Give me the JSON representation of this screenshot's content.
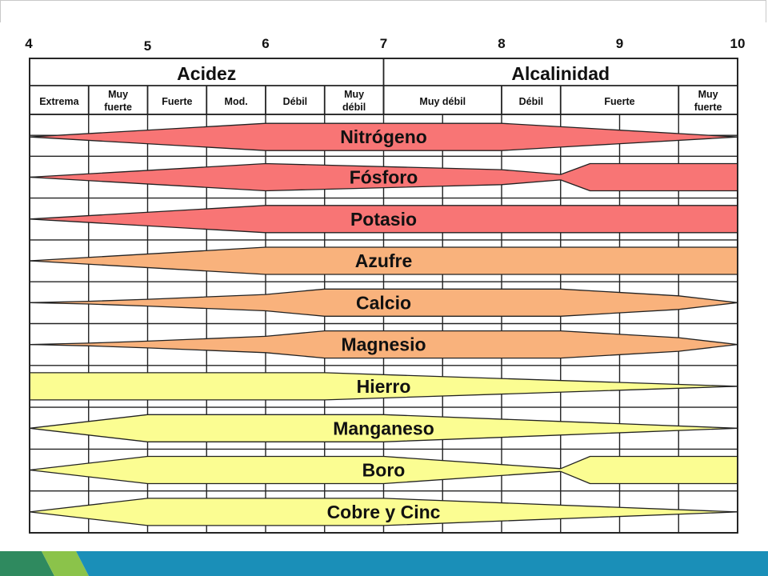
{
  "slide": {
    "footer": {
      "colors": [
        "#2f8a5f",
        "#8bc34a",
        "#1a8fb8"
      ]
    }
  },
  "chart_data": {
    "type": "band",
    "x_axis": {
      "ticks": [
        4,
        5,
        6,
        7,
        8,
        9,
        10
      ],
      "tick_labels": [
        "4",
        "5",
        "6",
        "7",
        "8",
        "9",
        "10"
      ],
      "range": [
        4,
        10
      ]
    },
    "groups": [
      {
        "label": "Acidez",
        "from": 4,
        "to": 7
      },
      {
        "label": "Alcalinidad",
        "from": 7,
        "to": 10
      }
    ],
    "subgroups": [
      {
        "label": "Extrema",
        "from": 4.0,
        "to": 4.5
      },
      {
        "label": "Muy\nfuerte",
        "from": 4.5,
        "to": 5.0
      },
      {
        "label": "Fuerte",
        "from": 5.0,
        "to": 5.5
      },
      {
        "label": "Mod.",
        "from": 5.5,
        "to": 6.0
      },
      {
        "label": "Débil",
        "from": 6.0,
        "to": 6.5
      },
      {
        "label": "Muy\ndébil",
        "from": 6.5,
        "to": 7.0
      },
      {
        "label": "Muy débil",
        "from": 7.0,
        "to": 8.0
      },
      {
        "label": "Débil",
        "from": 8.0,
        "to": 8.5
      },
      {
        "label": "Fuerte",
        "from": 8.5,
        "to": 9.5
      },
      {
        "label": "Muy\nfuerte",
        "from": 9.5,
        "to": 10.0
      }
    ],
    "series": [
      {
        "name": "Nitrógeno",
        "color": "#f87575",
        "profile": [
          [
            4,
            0
          ],
          [
            6,
            1
          ],
          [
            8,
            1
          ],
          [
            8.5,
            0.75
          ],
          [
            10,
            0
          ]
        ]
      },
      {
        "name": "Fósforo",
        "color": "#f87575",
        "profile": [
          [
            4,
            0
          ],
          [
            6,
            1
          ],
          [
            8,
            0.55
          ],
          [
            8.5,
            0.2
          ],
          [
            8.75,
            1
          ],
          [
            10,
            1
          ]
        ]
      },
      {
        "name": "Potasio",
        "color": "#f87575",
        "profile": [
          [
            4,
            0
          ],
          [
            6,
            1
          ],
          [
            10,
            1
          ]
        ]
      },
      {
        "name": "Azufre",
        "color": "#f9b27c",
        "profile": [
          [
            4,
            0
          ],
          [
            6,
            1
          ],
          [
            10,
            1
          ]
        ]
      },
      {
        "name": "Calcio",
        "color": "#f9b27c",
        "profile": [
          [
            4,
            0
          ],
          [
            4.5,
            0.1
          ],
          [
            5,
            0.25
          ],
          [
            6,
            0.6
          ],
          [
            6.5,
            1
          ],
          [
            8.5,
            1
          ],
          [
            9.5,
            0.5
          ],
          [
            10,
            0
          ]
        ]
      },
      {
        "name": "Magnesio",
        "color": "#f9b27c",
        "profile": [
          [
            4,
            0
          ],
          [
            4.5,
            0.1
          ],
          [
            5,
            0.25
          ],
          [
            6,
            0.6
          ],
          [
            6.5,
            1
          ],
          [
            8.5,
            1
          ],
          [
            9.5,
            0.5
          ],
          [
            10,
            0
          ]
        ]
      },
      {
        "name": "Hierro",
        "color": "#fbfd92",
        "profile": [
          [
            4,
            1
          ],
          [
            6.5,
            1
          ],
          [
            10,
            0
          ]
        ]
      },
      {
        "name": "Manganeso",
        "color": "#fbfd92",
        "profile": [
          [
            4,
            0
          ],
          [
            5,
            1
          ],
          [
            7,
            1
          ],
          [
            8.5,
            0.5
          ],
          [
            10,
            0
          ]
        ]
      },
      {
        "name": "Boro",
        "color": "#fbfd92",
        "profile": [
          [
            4,
            0
          ],
          [
            5,
            1
          ],
          [
            7,
            1
          ],
          [
            8.5,
            0.1
          ],
          [
            8.75,
            1
          ],
          [
            10,
            1
          ]
        ]
      },
      {
        "name": "Cobre y Cinc",
        "color": "#fbfd92",
        "profile": [
          [
            4,
            0
          ],
          [
            5,
            1
          ],
          [
            7,
            1
          ],
          [
            10,
            0
          ]
        ]
      }
    ]
  }
}
